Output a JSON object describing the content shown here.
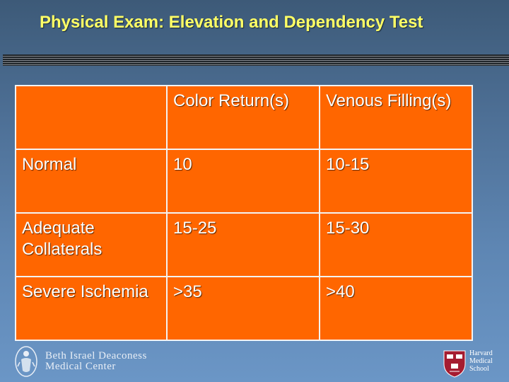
{
  "slide": {
    "title": "Physical Exam: Elevation and Dependency Test"
  },
  "table": {
    "header": [
      "",
      "Color Return(s)",
      "Venous Filling(s)"
    ],
    "rows": [
      [
        "Normal",
        "10",
        "10-15"
      ],
      [
        "Adequate Collaterals",
        "15-25",
        "15-30"
      ],
      [
        "Severe Ischemia",
        " >35",
        ">40"
      ]
    ]
  },
  "footer": {
    "left_logo_text": "Beth Israel Deaconess Medical Center",
    "left_logo_line1": "Beth Israel Deaconess",
    "left_logo_line2": "Medical Center",
    "right_logo_line1": "Harvard",
    "right_logo_line2": "Medical",
    "right_logo_line3": "School",
    "left_icon": "bidmc-seal-icon",
    "right_icon": "harvard-shield-icon"
  },
  "colors": {
    "title": "#ffff66",
    "table_fill": "#ff6600",
    "table_border": "#f3f3f3",
    "background_top": "#3d5a78",
    "background_bottom": "#6b96c6"
  }
}
